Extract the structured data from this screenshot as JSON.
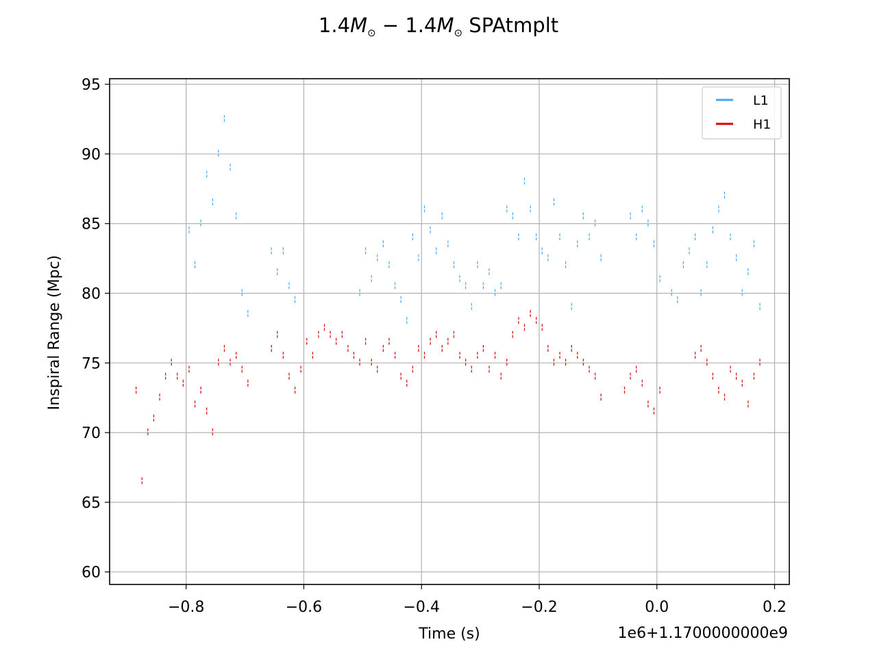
{
  "chart_data": {
    "type": "line",
    "title": "1.4M⊙ − 1.4M⊙ SPAtmplt",
    "title_parts": [
      "1.4",
      "M",
      "⊙",
      " − 1.4",
      "M",
      "⊙",
      " SPAtmplt"
    ],
    "xlabel": "Time (s)",
    "ylabel": "Inspiral Range (Mpc)",
    "x_offset_label": "1e6+1.1700000000e9",
    "xlim": [
      -0.93,
      0.225
    ],
    "ylim": [
      59.1,
      95.4
    ],
    "xticks": [
      -0.8,
      -0.6,
      -0.4,
      -0.2,
      0.0,
      0.2
    ],
    "xtick_labels": [
      "−0.8",
      "−0.6",
      "−0.4",
      "−0.2",
      "0.0",
      "0.2"
    ],
    "yticks": [
      60,
      65,
      70,
      75,
      80,
      85,
      90,
      95
    ],
    "ytick_labels": [
      "60",
      "65",
      "70",
      "75",
      "80",
      "85",
      "90",
      "95"
    ],
    "grid": true,
    "legend_position": "top-right",
    "series": [
      {
        "name": "L1",
        "color": "#42a5f5",
        "x": [
          -0.795,
          -0.785,
          -0.775,
          -0.765,
          -0.755,
          -0.745,
          -0.735,
          -0.725,
          -0.715,
          -0.705,
          -0.695,
          -0.655,
          -0.645,
          -0.635,
          -0.625,
          -0.615,
          -0.505,
          -0.495,
          -0.485,
          -0.475,
          -0.465,
          -0.455,
          -0.445,
          -0.435,
          -0.425,
          -0.415,
          -0.405,
          -0.395,
          -0.385,
          -0.375,
          -0.365,
          -0.355,
          -0.345,
          -0.335,
          -0.325,
          -0.315,
          -0.305,
          -0.295,
          -0.285,
          -0.275,
          -0.265,
          -0.255,
          -0.245,
          -0.235,
          -0.225,
          -0.215,
          -0.205,
          -0.195,
          -0.185,
          -0.175,
          -0.165,
          -0.155,
          -0.145,
          -0.135,
          -0.125,
          -0.115,
          -0.105,
          -0.095,
          -0.045,
          -0.035,
          -0.025,
          -0.015,
          -0.005,
          0.005,
          0.025,
          0.035,
          0.045,
          0.055,
          0.065,
          0.075,
          0.085,
          0.095,
          0.105,
          0.115,
          0.125,
          0.135,
          0.145,
          0.155,
          0.165,
          0.175
        ],
        "values": [
          84.5,
          82.0,
          85.0,
          88.5,
          86.5,
          90.0,
          92.5,
          89.0,
          85.5,
          80.0,
          78.5,
          83.0,
          81.5,
          83.0,
          80.5,
          79.5,
          80.0,
          83.0,
          81.0,
          82.5,
          83.5,
          82.0,
          80.5,
          79.5,
          78.0,
          84.0,
          82.5,
          86.0,
          84.5,
          83.0,
          85.5,
          83.5,
          82.0,
          81.0,
          80.5,
          79.0,
          82.0,
          80.5,
          81.5,
          80.0,
          80.5,
          86.0,
          85.5,
          84.0,
          88.0,
          86.0,
          84.0,
          83.0,
          82.5,
          86.5,
          84.0,
          82.0,
          79.0,
          83.5,
          85.5,
          84.0,
          85.0,
          82.5,
          85.5,
          84.0,
          86.0,
          85.0,
          83.5,
          81.0,
          80.0,
          79.5,
          82.0,
          83.0,
          84.0,
          80.0,
          82.0,
          84.5,
          86.0,
          87.0,
          84.0,
          82.5,
          80.0,
          81.5,
          83.5,
          79.0
        ]
      },
      {
        "name": "H1",
        "color": "#d60000",
        "x": [
          -0.885,
          -0.875,
          -0.865,
          -0.855,
          -0.845,
          -0.835,
          -0.825,
          -0.815,
          -0.805,
          -0.795,
          -0.785,
          -0.775,
          -0.765,
          -0.755,
          -0.745,
          -0.735,
          -0.725,
          -0.715,
          -0.705,
          -0.695,
          -0.655,
          -0.645,
          -0.635,
          -0.625,
          -0.615,
          -0.605,
          -0.595,
          -0.585,
          -0.575,
          -0.565,
          -0.555,
          -0.545,
          -0.535,
          -0.525,
          -0.515,
          -0.505,
          -0.495,
          -0.485,
          -0.475,
          -0.465,
          -0.455,
          -0.445,
          -0.435,
          -0.425,
          -0.415,
          -0.405,
          -0.395,
          -0.385,
          -0.375,
          -0.365,
          -0.355,
          -0.345,
          -0.335,
          -0.325,
          -0.315,
          -0.305,
          -0.295,
          -0.285,
          -0.275,
          -0.265,
          -0.255,
          -0.245,
          -0.235,
          -0.225,
          -0.215,
          -0.205,
          -0.195,
          -0.185,
          -0.175,
          -0.165,
          -0.155,
          -0.145,
          -0.135,
          -0.125,
          -0.115,
          -0.105,
          -0.095,
          -0.055,
          -0.045,
          -0.035,
          -0.025,
          -0.015,
          -0.005,
          0.005,
          0.065,
          0.075,
          0.085,
          0.095,
          0.105,
          0.115,
          0.125,
          0.135,
          0.145,
          0.155,
          0.165,
          0.175
        ],
        "values": [
          73.0,
          66.5,
          70.0,
          71.0,
          72.5,
          74.0,
          75.0,
          74.0,
          73.5,
          74.5,
          72.0,
          73.0,
          71.5,
          70.0,
          75.0,
          76.0,
          75.0,
          75.5,
          74.5,
          73.5,
          76.0,
          77.0,
          75.5,
          74.0,
          73.0,
          74.5,
          76.5,
          75.5,
          77.0,
          77.5,
          77.0,
          76.5,
          77.0,
          76.0,
          75.5,
          75.0,
          76.5,
          75.0,
          74.5,
          76.0,
          76.5,
          75.5,
          74.0,
          73.5,
          74.5,
          76.0,
          75.5,
          76.5,
          77.0,
          76.0,
          76.5,
          77.0,
          75.5,
          75.0,
          74.5,
          75.5,
          76.0,
          74.5,
          75.5,
          74.0,
          75.0,
          77.0,
          78.0,
          77.5,
          78.5,
          78.0,
          77.5,
          76.0,
          75.0,
          75.5,
          75.0,
          76.0,
          75.5,
          75.0,
          74.5,
          74.0,
          72.5,
          73.0,
          74.0,
          74.5,
          73.5,
          72.0,
          71.5,
          73.0,
          75.5,
          76.0,
          75.0,
          74.0,
          73.0,
          72.5,
          74.5,
          74.0,
          73.5,
          72.0,
          74.0,
          75.0
        ]
      }
    ]
  }
}
